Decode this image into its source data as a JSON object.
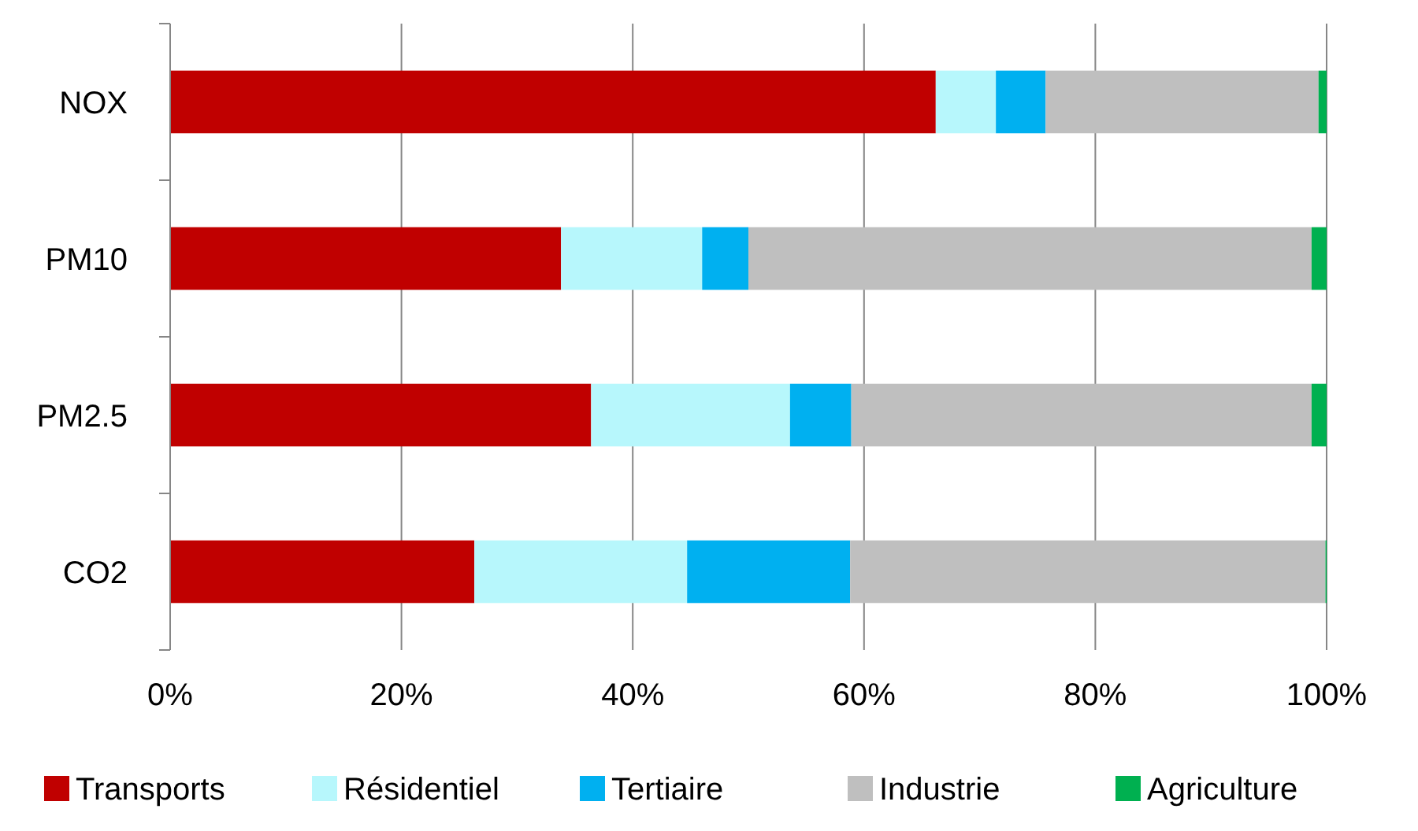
{
  "chart_data": {
    "type": "bar",
    "orientation": "horizontal",
    "stacked": true,
    "categories": [
      "NOX",
      "PM10",
      "PM2.5",
      "CO2"
    ],
    "series": [
      {
        "name": "Transports",
        "color": "#c00000",
        "values": [
          66.2,
          33.8,
          36.4,
          26.3
        ]
      },
      {
        "name": "Résidentiel",
        "color": "#b7f7fc",
        "values": [
          5.2,
          12.2,
          17.2,
          18.4
        ]
      },
      {
        "name": "Tertiaire",
        "color": "#00b0f0",
        "values": [
          4.3,
          4.0,
          5.3,
          14.1
        ]
      },
      {
        "name": "Industrie",
        "color": "#bfbfbf",
        "values": [
          23.6,
          48.7,
          39.8,
          41.1
        ]
      },
      {
        "name": "Agriculture",
        "color": "#00b050",
        "values": [
          0.7,
          1.3,
          1.3,
          0.1
        ]
      }
    ],
    "xlim": [
      0,
      100
    ],
    "xticks": [
      {
        "value": 0,
        "label": "0%"
      },
      {
        "value": 20,
        "label": "20%"
      },
      {
        "value": 40,
        "label": "40%"
      },
      {
        "value": 60,
        "label": "60%"
      },
      {
        "value": 80,
        "label": "80%"
      },
      {
        "value": 100,
        "label": "100%"
      }
    ],
    "grid": "x",
    "legend": "bottom"
  }
}
